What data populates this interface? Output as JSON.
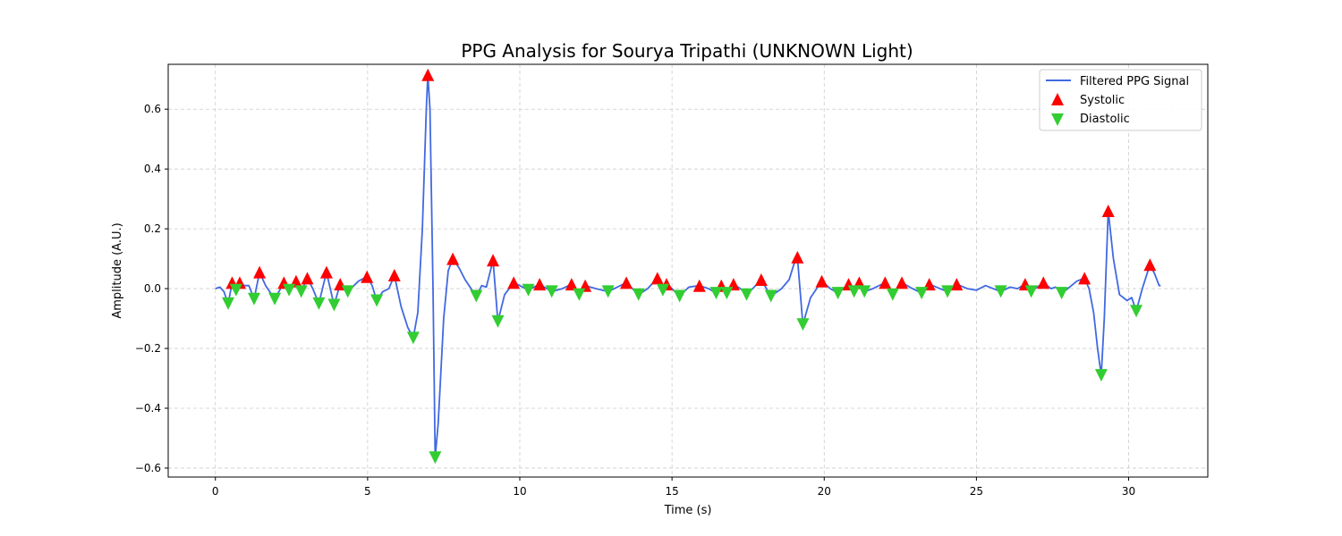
{
  "chart_data": {
    "type": "line",
    "title": "PPG Analysis for Sourya Tripathi (UNKNOWN Light)",
    "xlabel": "Time (s)",
    "ylabel": "Amplitude (A.U.)",
    "xlim": [
      -1.55,
      32.6
    ],
    "ylim": [
      -0.63,
      0.75
    ],
    "x_ticks": [
      0,
      5,
      10,
      15,
      20,
      25,
      30
    ],
    "y_ticks": [
      -0.6,
      -0.4,
      -0.2,
      0.0,
      0.2,
      0.4,
      0.6
    ],
    "x_tick_labels": [
      "0",
      "5",
      "10",
      "15",
      "20",
      "25",
      "30"
    ],
    "y_tick_labels": [
      "−0.6",
      "−0.4",
      "−0.2",
      "0.0",
      "0.2",
      "0.4",
      "0.6"
    ],
    "grid": true,
    "legend_position": "top-right",
    "colors": {
      "signal": "#4169e1",
      "systolic": "#ff0000",
      "diastolic": "#32cd32",
      "grid": "#cccccc"
    },
    "series": [
      {
        "name": "Filtered PPG Signal",
        "kind": "line",
        "points": [
          [
            0.0,
            0.0
          ],
          [
            0.15,
            0.005
          ],
          [
            0.28,
            -0.01
          ],
          [
            0.42,
            -0.05
          ],
          [
            0.55,
            0.02
          ],
          [
            0.68,
            -0.005
          ],
          [
            0.8,
            0.02
          ],
          [
            0.95,
            0.01
          ],
          [
            1.1,
            0.01
          ],
          [
            1.27,
            -0.035
          ],
          [
            1.45,
            0.055
          ],
          [
            1.65,
            0.01
          ],
          [
            1.95,
            -0.035
          ],
          [
            2.25,
            0.02
          ],
          [
            2.42,
            -0.005
          ],
          [
            2.65,
            0.025
          ],
          [
            2.82,
            -0.01
          ],
          [
            3.02,
            0.035
          ],
          [
            3.2,
            0.0
          ],
          [
            3.4,
            -0.05
          ],
          [
            3.65,
            0.055
          ],
          [
            3.9,
            -0.055
          ],
          [
            4.1,
            0.015
          ],
          [
            4.35,
            -0.01
          ],
          [
            4.7,
            0.025
          ],
          [
            4.98,
            0.04
          ],
          [
            5.15,
            0.01
          ],
          [
            5.3,
            -0.04
          ],
          [
            5.5,
            -0.01
          ],
          [
            5.7,
            0.0
          ],
          [
            5.88,
            0.045
          ],
          [
            6.1,
            -0.06
          ],
          [
            6.32,
            -0.13
          ],
          [
            6.5,
            -0.165
          ],
          [
            6.65,
            -0.08
          ],
          [
            6.8,
            0.2
          ],
          [
            6.93,
            0.6
          ],
          [
            6.98,
            0.715
          ],
          [
            7.05,
            0.6
          ],
          [
            7.15,
            0.0
          ],
          [
            7.22,
            -0.565
          ],
          [
            7.32,
            -0.45
          ],
          [
            7.5,
            -0.1
          ],
          [
            7.65,
            0.06
          ],
          [
            7.8,
            0.1
          ],
          [
            8.0,
            0.07
          ],
          [
            8.2,
            0.03
          ],
          [
            8.4,
            0.0
          ],
          [
            8.57,
            -0.025
          ],
          [
            8.75,
            0.01
          ],
          [
            8.9,
            0.005
          ],
          [
            9.12,
            0.095
          ],
          [
            9.28,
            -0.11
          ],
          [
            9.5,
            -0.02
          ],
          [
            9.8,
            0.02
          ],
          [
            10.0,
            0.01
          ],
          [
            10.28,
            -0.005
          ],
          [
            10.65,
            0.015
          ],
          [
            11.05,
            -0.01
          ],
          [
            11.4,
            0.0
          ],
          [
            11.7,
            0.015
          ],
          [
            11.95,
            -0.02
          ],
          [
            12.15,
            0.01
          ],
          [
            12.5,
            0.0
          ],
          [
            12.9,
            -0.01
          ],
          [
            13.2,
            0.005
          ],
          [
            13.5,
            0.02
          ],
          [
            13.9,
            -0.02
          ],
          [
            14.2,
            0.0
          ],
          [
            14.52,
            0.035
          ],
          [
            14.7,
            -0.005
          ],
          [
            14.82,
            0.015
          ],
          [
            15.0,
            0.0
          ],
          [
            15.25,
            -0.025
          ],
          [
            15.55,
            0.005
          ],
          [
            15.9,
            0.01
          ],
          [
            16.2,
            0.0
          ],
          [
            16.45,
            -0.015
          ],
          [
            16.62,
            0.01
          ],
          [
            16.8,
            -0.015
          ],
          [
            17.02,
            0.015
          ],
          [
            17.25,
            0.0
          ],
          [
            17.45,
            -0.02
          ],
          [
            17.65,
            0.0
          ],
          [
            17.93,
            0.03
          ],
          [
            18.25,
            -0.025
          ],
          [
            18.6,
            0.0
          ],
          [
            18.85,
            0.03
          ],
          [
            19.0,
            0.08
          ],
          [
            19.12,
            0.105
          ],
          [
            19.3,
            -0.12
          ],
          [
            19.55,
            -0.03
          ],
          [
            19.92,
            0.025
          ],
          [
            20.2,
            0.0
          ],
          [
            20.45,
            -0.015
          ],
          [
            20.8,
            0.015
          ],
          [
            20.98,
            -0.01
          ],
          [
            21.15,
            0.02
          ],
          [
            21.32,
            -0.01
          ],
          [
            21.6,
            0.0
          ],
          [
            22.0,
            0.02
          ],
          [
            22.25,
            -0.02
          ],
          [
            22.55,
            0.02
          ],
          [
            22.9,
            0.0
          ],
          [
            23.2,
            -0.015
          ],
          [
            23.45,
            0.015
          ],
          [
            23.8,
            0.0
          ],
          [
            24.05,
            -0.01
          ],
          [
            24.35,
            0.015
          ],
          [
            24.7,
            0.0
          ],
          [
            25.0,
            -0.005
          ],
          [
            25.3,
            0.01
          ],
          [
            25.55,
            0.0
          ],
          [
            25.8,
            -0.01
          ],
          [
            26.1,
            0.005
          ],
          [
            26.35,
            0.0
          ],
          [
            26.6,
            0.015
          ],
          [
            26.8,
            -0.01
          ],
          [
            27.0,
            0.005
          ],
          [
            27.2,
            0.02
          ],
          [
            27.45,
            0.0
          ],
          [
            27.6,
            0.005
          ],
          [
            27.8,
            -0.015
          ],
          [
            28.0,
            0.0
          ],
          [
            28.3,
            0.025
          ],
          [
            28.55,
            0.035
          ],
          [
            28.7,
            0.0
          ],
          [
            28.85,
            -0.08
          ],
          [
            28.98,
            -0.2
          ],
          [
            29.1,
            -0.29
          ],
          [
            29.2,
            -0.1
          ],
          [
            29.33,
            0.26
          ],
          [
            29.5,
            0.1
          ],
          [
            29.7,
            -0.02
          ],
          [
            29.95,
            -0.04
          ],
          [
            30.1,
            -0.03
          ],
          [
            30.25,
            -0.075
          ],
          [
            30.45,
            0.0
          ],
          [
            30.7,
            0.08
          ],
          [
            30.85,
            0.05
          ],
          [
            31.0,
            0.01
          ],
          [
            31.05,
            0.01
          ]
        ]
      },
      {
        "name": "Systolic",
        "kind": "marker-up",
        "points": [
          [
            0.55,
            0.02
          ],
          [
            0.8,
            0.02
          ],
          [
            1.45,
            0.055
          ],
          [
            2.25,
            0.02
          ],
          [
            2.65,
            0.025
          ],
          [
            3.02,
            0.035
          ],
          [
            3.65,
            0.055
          ],
          [
            4.1,
            0.015
          ],
          [
            4.98,
            0.04
          ],
          [
            5.88,
            0.045
          ],
          [
            6.98,
            0.715
          ],
          [
            7.8,
            0.1
          ],
          [
            9.12,
            0.095
          ],
          [
            9.8,
            0.02
          ],
          [
            10.65,
            0.015
          ],
          [
            11.7,
            0.015
          ],
          [
            12.15,
            0.01
          ],
          [
            13.5,
            0.02
          ],
          [
            14.52,
            0.035
          ],
          [
            14.82,
            0.015
          ],
          [
            15.9,
            0.01
          ],
          [
            16.62,
            0.01
          ],
          [
            17.02,
            0.015
          ],
          [
            17.93,
            0.03
          ],
          [
            19.12,
            0.105
          ],
          [
            19.92,
            0.025
          ],
          [
            20.8,
            0.015
          ],
          [
            21.15,
            0.02
          ],
          [
            22.0,
            0.02
          ],
          [
            22.55,
            0.02
          ],
          [
            23.45,
            0.015
          ],
          [
            24.35,
            0.015
          ],
          [
            26.6,
            0.015
          ],
          [
            27.2,
            0.02
          ],
          [
            28.55,
            0.035
          ],
          [
            29.33,
            0.26
          ],
          [
            30.7,
            0.08
          ]
        ]
      },
      {
        "name": "Diastolic",
        "kind": "marker-down",
        "points": [
          [
            0.42,
            -0.05
          ],
          [
            0.68,
            -0.005
          ],
          [
            1.27,
            -0.035
          ],
          [
            1.95,
            -0.035
          ],
          [
            2.42,
            -0.005
          ],
          [
            2.82,
            -0.01
          ],
          [
            3.4,
            -0.05
          ],
          [
            3.9,
            -0.055
          ],
          [
            4.35,
            -0.01
          ],
          [
            5.3,
            -0.04
          ],
          [
            6.5,
            -0.165
          ],
          [
            7.22,
            -0.565
          ],
          [
            8.57,
            -0.025
          ],
          [
            9.28,
            -0.11
          ],
          [
            10.28,
            -0.005
          ],
          [
            11.05,
            -0.01
          ],
          [
            11.95,
            -0.02
          ],
          [
            12.9,
            -0.01
          ],
          [
            13.9,
            -0.02
          ],
          [
            14.7,
            -0.005
          ],
          [
            15.25,
            -0.025
          ],
          [
            16.45,
            -0.015
          ],
          [
            16.8,
            -0.015
          ],
          [
            17.45,
            -0.02
          ],
          [
            18.25,
            -0.025
          ],
          [
            19.3,
            -0.12
          ],
          [
            20.45,
            -0.015
          ],
          [
            20.98,
            -0.01
          ],
          [
            21.32,
            -0.01
          ],
          [
            22.25,
            -0.02
          ],
          [
            23.2,
            -0.015
          ],
          [
            24.05,
            -0.01
          ],
          [
            25.8,
            -0.01
          ],
          [
            26.8,
            -0.01
          ],
          [
            27.8,
            -0.015
          ],
          [
            29.1,
            -0.29
          ],
          [
            30.25,
            -0.075
          ]
        ]
      }
    ]
  }
}
